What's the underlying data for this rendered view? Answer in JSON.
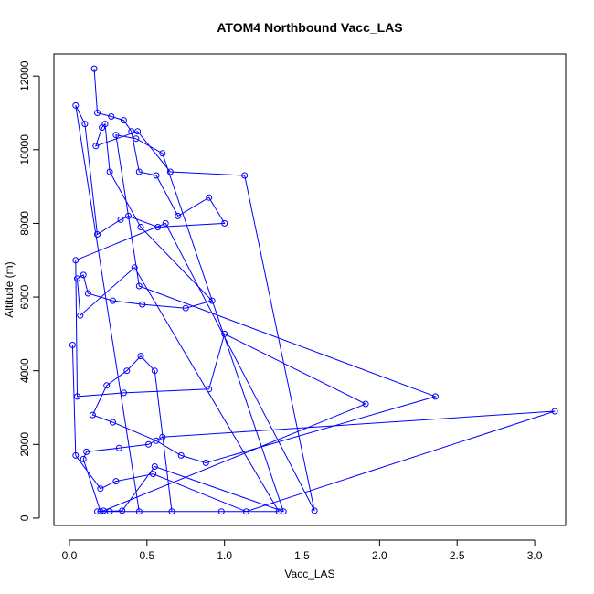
{
  "chart_data": {
    "type": "line",
    "title": "ATOM4 Northbound Vacc_LAS",
    "xlabel": "Vacc_LAS",
    "ylabel": "Altitude (m)",
    "xlim": [
      -0.1,
      3.2
    ],
    "ylim": [
      -200,
      12600
    ],
    "xticks": [
      0.0,
      0.5,
      1.0,
      1.5,
      2.0,
      2.5,
      3.0
    ],
    "xtick_labels": [
      "0.0",
      "0.5",
      "1.0",
      "1.5",
      "2.0",
      "2.5",
      "3.0"
    ],
    "yticks": [
      0,
      2000,
      4000,
      6000,
      8000,
      10000,
      12000
    ],
    "ytick_labels": [
      "0",
      "2000",
      "4000",
      "6000",
      "8000",
      "10000",
      "12000"
    ],
    "grid": false,
    "marker": "open-circle",
    "color": "#0000ff",
    "series": [
      {
        "x": [
          0.16,
          0.18,
          0.27,
          0.35,
          0.4,
          0.45,
          0.56,
          0.7,
          0.9,
          1.0,
          0.57,
          0.38,
          0.33,
          0.18,
          0.1,
          0.04,
          0.45,
          1.35,
          0.42,
          0.07,
          0.05,
          0.09,
          0.12,
          0.28,
          0.47,
          0.75,
          0.92,
          0.46,
          0.26,
          0.23,
          0.21,
          0.17,
          0.44,
          0.65,
          1.13,
          1.58,
          0.62,
          0.04,
          0.05,
          0.35,
          0.9,
          1.0,
          1.91,
          0.22,
          0.18,
          0.26,
          0.98,
          0.66,
          0.55,
          0.46,
          0.37,
          0.24,
          0.15,
          0.28,
          0.56,
          0.72,
          0.88,
          2.36,
          0.45,
          0.3,
          0.43,
          0.6,
          1.38,
          0.55,
          0.34,
          0.2,
          0.09,
          0.11,
          0.32,
          0.51,
          0.6,
          3.13,
          1.14,
          0.54,
          0.3,
          0.2,
          0.04,
          0.02
        ],
        "y": [
          12200,
          11000,
          10900,
          10800,
          10500,
          9400,
          9300,
          8200,
          8700,
          8000,
          7900,
          8200,
          8100,
          7700,
          10700,
          11200,
          180,
          180,
          6800,
          5500,
          6500,
          6600,
          6100,
          5900,
          5800,
          5700,
          5900,
          7900,
          9400,
          10700,
          10600,
          10100,
          10500,
          9400,
          9300,
          200,
          8000,
          7000,
          3300,
          3400,
          3500,
          5000,
          3100,
          200,
          180,
          180,
          180,
          180,
          4000,
          4400,
          4000,
          3600,
          2800,
          2600,
          2100,
          1700,
          1500,
          3300,
          6300,
          10400,
          10300,
          9900,
          180,
          1400,
          200,
          180,
          1600,
          1800,
          1900,
          2000,
          2200,
          2900,
          180,
          1200,
          1000,
          800,
          1700,
          4700
        ]
      }
    ]
  }
}
